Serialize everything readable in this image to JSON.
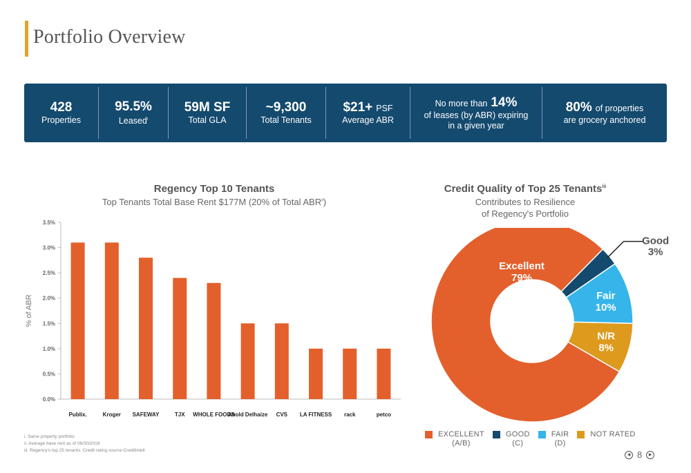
{
  "page": {
    "title": "Portfolio Overview",
    "page_number": "8"
  },
  "stats": {
    "properties": {
      "value": "428",
      "label": "Properties"
    },
    "leased": {
      "value": "95.5%",
      "label": "Leased",
      "note": "i"
    },
    "gla": {
      "value": "59M SF",
      "label": "Total GLA"
    },
    "tenants": {
      "value": "~9,300",
      "label": "Total Tenants"
    },
    "abr": {
      "value": "$21+",
      "unit": "PSF",
      "label": "Average ABR"
    },
    "leases": {
      "prefix": "No more than",
      "value": "14%",
      "line2": "of leases (by ABR) expiring",
      "line3": "in a given year"
    },
    "grocery": {
      "value": "80%",
      "suffix": "of properties",
      "line2": "are grocery anchored"
    }
  },
  "bar_chart": {
    "title": "Regency Top 10 Tenants",
    "subtitle": "Top Tenants Total Base Rent $177M (20% of Total ABR",
    "subtitle_note": "ii",
    "subtitle_end": ")"
  },
  "donut_chart": {
    "title": "Credit Quality of Top 25 Tenants",
    "title_note": "iii",
    "subtitle_line1": "Contributes to Resilience",
    "subtitle_line2": "of Regency's Portfolio"
  },
  "chart_data": [
    {
      "type": "bar",
      "title": "Regency Top 10 Tenants",
      "ylabel": "% of ABR",
      "ylim": [
        0,
        3.5
      ],
      "yticks": [
        "0.0%",
        "0.5%",
        "1.0%",
        "1.5%",
        "2.0%",
        "2.5%",
        "3.0%",
        "3.5%"
      ],
      "categories": [
        "Publix",
        "Kroger",
        "Safeway / Albertsons",
        "TJX",
        "Whole Foods",
        "Ahold Delhaize",
        "CVS",
        "LA Fitness",
        "Nordstrom Rack",
        "Petco"
      ],
      "category_labels": [
        "Publix.",
        "Kroger",
        "SAFEWAY",
        "TJX",
        "WHOLE FOODS",
        "Ahold Delhaize",
        "CVS",
        "LA FITNESS",
        "rack",
        "petco"
      ],
      "values": [
        3.1,
        3.1,
        2.8,
        2.4,
        2.3,
        1.5,
        1.5,
        1.0,
        1.0,
        1.0
      ],
      "bar_color": "#e3602c",
      "grid": false
    },
    {
      "type": "pie",
      "title": "Credit Quality of Top 25 Tenants",
      "donut": true,
      "slices": [
        {
          "name": "Excellent",
          "value": 79,
          "label": "79%",
          "legend": "EXCELLENT",
          "legend_sub": "(A/B)",
          "color": "#e3602c"
        },
        {
          "name": "Good",
          "value": 3,
          "label": "3%",
          "legend": "GOOD",
          "legend_sub": "(C)",
          "color": "#144a6e"
        },
        {
          "name": "Fair",
          "value": 10,
          "label": "10%",
          "legend": "FAIR",
          "legend_sub": "(D)",
          "color": "#35b5e9"
        },
        {
          "name": "N/R",
          "value": 8,
          "label": "8%",
          "legend": "NOT RATED",
          "legend_sub": "",
          "color": "#dd9a1d"
        }
      ]
    }
  ],
  "footnotes": [
    "i. Same property portfolio",
    "ii. Average base rent as of 06/30/2018",
    "iii. Regency's top 25 tenants. Credit rating source-CreditIntell"
  ],
  "colors": {
    "accent": "#e5a22b",
    "navy": "#144a6e",
    "orange": "#e3602c",
    "blue": "#35b5e9",
    "gold": "#dd9a1d"
  }
}
